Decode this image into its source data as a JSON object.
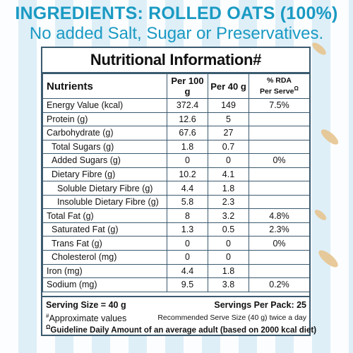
{
  "header": {
    "line1": "INGREDIENTS: ROLLED OATS (100%)",
    "line2": "No added Salt, Sugar or Preservatives."
  },
  "panel": {
    "title": "Nutritional Information#",
    "columns": {
      "nutrients": "Nutrients",
      "per100": "Per 100 g",
      "per40": "Per 40 g",
      "rda": "% RDA",
      "rda_sub": "Per Serve",
      "rda_mark": "Ω"
    },
    "rows": [
      {
        "name": "Energy Value (kcal)",
        "per100": "372.4",
        "per40": "149",
        "rda": "7.5%"
      },
      {
        "name": "Protein (g)",
        "per100": "12.6",
        "per40": "5",
        "rda": ""
      },
      {
        "name": "Carbohydrate (g)",
        "per100": "67.6",
        "per40": "27",
        "rda": ""
      },
      {
        "name": "Total Sugars (g)",
        "per100": "1.8",
        "per40": "0.7",
        "rda": ""
      },
      {
        "name": "Added Sugars (g)",
        "per100": "0",
        "per40": "0",
        "rda": "0%"
      },
      {
        "name": "Dietary Fibre (g)",
        "per100": "10.2",
        "per40": "4.1",
        "rda": ""
      },
      {
        "name": "Soluble Dietary Fibre (g)",
        "per100": "4.4",
        "per40": "1.8",
        "rda": ""
      },
      {
        "name": "Insoluble Dietary Fibre (g)",
        "per100": "5.8",
        "per40": "2.3",
        "rda": ""
      },
      {
        "name": "Total Fat (g)",
        "per100": "8",
        "per40": "3.2",
        "rda": "4.8%"
      },
      {
        "name": "Saturated Fat (g)",
        "per100": "1.3",
        "per40": "0.5",
        "rda": "2.3%"
      },
      {
        "name": "Trans Fat (g)",
        "per100": "0",
        "per40": "0",
        "rda": "0%"
      },
      {
        "name": "Cholesterol (mg)",
        "per100": "0",
        "per40": "0",
        "rda": ""
      },
      {
        "name": "Iron (mg)",
        "per100": "4.4",
        "per40": "1.8",
        "rda": ""
      },
      {
        "name": "Sodium (mg)",
        "per100": "9.5",
        "per40": "3.8",
        "rda": "0.2%"
      }
    ],
    "serving_size": "Serving Size = 40 g",
    "servings_per_pack": "Servings Per Pack: 25",
    "approx_mark": "#",
    "approx": "Approximate values",
    "recommended": "Recommended Serve Size (40 g) twice a day",
    "gda_mark": "Ω",
    "gda": "Guideline Daily Amount of an average adult (based on 2000 kcal diet)"
  }
}
